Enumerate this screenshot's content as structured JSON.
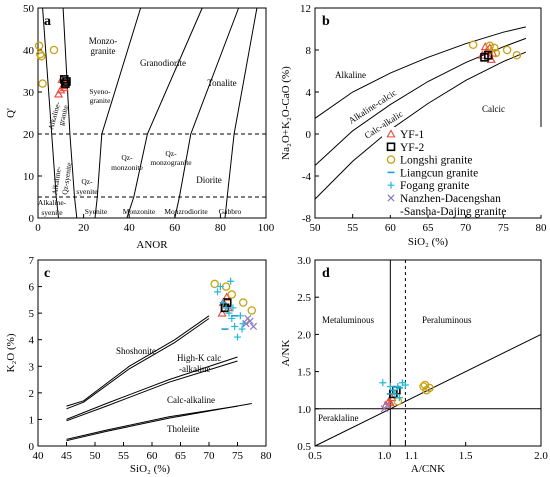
{
  "colors": {
    "axis": "#000000",
    "yf1": "#e8463c",
    "yf2": "#000000",
    "longshi": "#c9a214",
    "liangcun": "#1aa2d6",
    "fogang": "#22b8d6",
    "nanzhen": "#8a7bc4"
  },
  "legend": {
    "entries": [
      {
        "key": "yf1",
        "label": "YF-1",
        "icon": "triangle-icon"
      },
      {
        "key": "yf2",
        "label": "YF-2",
        "icon": "square-icon"
      },
      {
        "key": "longshi",
        "label": "Longshi granite",
        "icon": "circle-icon"
      },
      {
        "key": "liangcun",
        "label": "Liangcun granite",
        "icon": "dash-icon"
      },
      {
        "key": "fogang",
        "label": "Fogang granite",
        "icon": "plus-icon"
      },
      {
        "key": "nanzhen",
        "label": "Nanzhen-Dacengshan",
        "icon": "cross-icon"
      }
    ],
    "continuation": "-Sansha-Dajing granite"
  },
  "chart_data": [
    {
      "panel": "a",
      "type": "scatter",
      "xlabel": "ANOR",
      "ylabel": "Q'",
      "xlim": [
        0,
        100
      ],
      "ylim": [
        0,
        50
      ],
      "x_ticks": [
        "0",
        "20",
        "40",
        "60",
        "80",
        "100"
      ],
      "y_ticks": [
        "0",
        "10",
        "20",
        "30",
        "40",
        "50"
      ],
      "dashed_lines_y": [
        20,
        5
      ],
      "boundaries": [
        [
          [
            2,
            50
          ],
          [
            6,
            20
          ],
          [
            8,
            5
          ],
          [
            9,
            0
          ]
        ],
        [
          [
            11,
            50
          ],
          [
            14,
            20
          ],
          [
            16,
            5
          ],
          [
            17,
            0
          ]
        ],
        [
          [
            45,
            50
          ],
          [
            28,
            20
          ],
          [
            26,
            5
          ],
          [
            25,
            0
          ]
        ],
        [
          [
            72,
            50
          ],
          [
            48,
            20
          ],
          [
            42,
            5
          ],
          [
            39,
            0
          ]
        ],
        [
          [
            88,
            50
          ],
          [
            67,
            20
          ],
          [
            62,
            5
          ],
          [
            60,
            0
          ]
        ],
        [
          [
            96,
            50
          ],
          [
            86,
            20
          ],
          [
            83,
            5
          ],
          [
            82,
            0
          ]
        ]
      ],
      "fields": [
        "Monzo-",
        "granite",
        "Granodiorite",
        "Syeno-",
        "granite",
        "Alkaline-",
        "granite",
        "Tonalite",
        "Alkaline-",
        "Qz-syenite",
        "Qz-",
        "syenite",
        "Qz-",
        "monzonite",
        "Qz-",
        "monzogranite",
        "Diorite",
        "Alkaline-",
        "syenite",
        "Syenite",
        "Monzonite",
        "Monzrodiorite",
        "Gabbro"
      ],
      "series": [
        {
          "name": "YF-1",
          "marker": "triangle",
          "x": [
            9,
            10,
            11,
            12,
            10.5,
            11.5
          ],
          "y": [
            29.5,
            30.5,
            31.5,
            32,
            33,
            31
          ]
        },
        {
          "name": "YF-2",
          "marker": "square",
          "x": [
            11.5,
            12.5,
            12
          ],
          "y": [
            33,
            32.5,
            32
          ]
        },
        {
          "name": "Longshi granite",
          "marker": "circle",
          "x": [
            0.5,
            1,
            2,
            1.5,
            7
          ],
          "y": [
            41,
            39,
            32,
            38.5,
            40
          ]
        }
      ]
    },
    {
      "panel": "b",
      "type": "scatter",
      "xlabel": "SiO₂ (%)",
      "ylabel": "Na₂O+K₂O-CaO (%)",
      "xlim": [
        50,
        80
      ],
      "ylim": [
        -8,
        12
      ],
      "x_ticks": [
        "50",
        "55",
        "60",
        "65",
        "70",
        "75",
        "80"
      ],
      "y_ticks": [
        "-8",
        "-4",
        "0",
        "4",
        "8",
        "12"
      ],
      "curves": [
        [
          [
            50,
            1.5
          ],
          [
            55,
            4
          ],
          [
            60,
            5.8
          ],
          [
            65,
            7.3
          ],
          [
            70,
            8.6
          ],
          [
            75,
            9.7
          ],
          [
            78,
            10.2
          ]
        ],
        [
          [
            50,
            -3
          ],
          [
            55,
            0.3
          ],
          [
            60,
            2.8
          ],
          [
            65,
            5
          ],
          [
            70,
            6.8
          ],
          [
            75,
            8.3
          ],
          [
            78,
            9.1
          ]
        ],
        [
          [
            50,
            -6.2
          ],
          [
            55,
            -2.6
          ],
          [
            60,
            0.4
          ],
          [
            65,
            2.9
          ],
          [
            70,
            5.1
          ],
          [
            75,
            6.9
          ],
          [
            78,
            7.8
          ]
        ]
      ],
      "fields": [
        "Alkaline",
        "Alkaline-calcic",
        "Calc-alkalic",
        "Calcic"
      ],
      "series": [
        {
          "name": "YF-1",
          "marker": "triangle",
          "x": [
            72.2,
            72.8,
            73.2,
            73.6,
            72.6,
            73.4
          ],
          "y": [
            7.5,
            7.9,
            8.2,
            7.7,
            8.3,
            7.1
          ]
        },
        {
          "name": "YF-2",
          "marker": "square",
          "x": [
            72.5,
            73
          ],
          "y": [
            7.3,
            7.5
          ]
        },
        {
          "name": "Longshi granite",
          "marker": "circle",
          "x": [
            71,
            73.8,
            75.5,
            76.8,
            73.2,
            74
          ],
          "y": [
            8.5,
            8.2,
            8,
            7.5,
            8.4,
            7.7
          ]
        }
      ]
    },
    {
      "panel": "c",
      "type": "scatter",
      "xlabel": "SiO₂ (%)",
      "ylabel": "K₂O (%)",
      "xlim": [
        40,
        80
      ],
      "ylim": [
        0,
        7
      ],
      "x_ticks": [
        "40",
        "45",
        "50",
        "55",
        "60",
        "65",
        "70",
        "75",
        "80"
      ],
      "y_ticks": [
        "0",
        "1",
        "2",
        "3",
        "4",
        "5",
        "6",
        "7"
      ],
      "curves": [
        [
          [
            45,
            1.5
          ],
          [
            48,
            1.7
          ],
          [
            56,
            3.0
          ],
          [
            64,
            4.0
          ],
          [
            70,
            4.9
          ]
        ],
        [
          [
            45,
            1.4
          ],
          [
            48,
            1.65
          ],
          [
            56,
            2.9
          ],
          [
            64,
            3.9
          ],
          [
            70,
            4.8
          ]
        ],
        [
          [
            45,
            1.0
          ],
          [
            52,
            1.6
          ],
          [
            63,
            2.5
          ],
          [
            75,
            3.35
          ]
        ],
        [
          [
            45,
            0.95
          ],
          [
            52,
            1.5
          ],
          [
            63,
            2.4
          ],
          [
            75,
            3.2
          ]
        ],
        [
          [
            45,
            0.25
          ],
          [
            52,
            0.6
          ],
          [
            63,
            1.1
          ],
          [
            75,
            1.5
          ]
        ],
        [
          [
            45,
            0.2
          ],
          [
            52,
            0.55
          ],
          [
            63,
            1.05
          ],
          [
            77.5,
            1.6
          ]
        ]
      ],
      "fields": [
        "Shoshonite",
        "High-K calc",
        "-alkaline",
        "Calc-alkaline",
        "Tholeiite"
      ],
      "series": [
        {
          "name": "YF-1",
          "marker": "triangle",
          "x": [
            72.3,
            72.8,
            73.1,
            72.5,
            73.4
          ],
          "y": [
            5.0,
            5.3,
            5.6,
            5.4,
            5.2
          ]
        },
        {
          "name": "YF-2",
          "marker": "square",
          "x": [
            72.8,
            73.2
          ],
          "y": [
            5.2,
            5.4
          ]
        },
        {
          "name": "Longshi granite",
          "marker": "circle",
          "x": [
            71,
            74,
            76,
            77.5,
            73
          ],
          "y": [
            6.1,
            5.7,
            5.4,
            5.1,
            6.0
          ]
        },
        {
          "name": "Fogang granite",
          "marker": "plus",
          "x": [
            71.5,
            72,
            73,
            73.5,
            74,
            74.5,
            75,
            76,
            72.5,
            74.2,
            73.8,
            75.5,
            75.8
          ],
          "y": [
            5.8,
            6.0,
            5.2,
            5.0,
            4.8,
            4.5,
            4.1,
            4.6,
            5.4,
            5.2,
            6.2,
            4.9,
            4.4
          ]
        },
        {
          "name": "Liangcun granite",
          "marker": "dash",
          "x": [
            72.8,
            74.5
          ],
          "y": [
            4.4,
            4.9
          ]
        },
        {
          "name": "Nanzhen-Dacengshan-Sansha-Dajing granite",
          "marker": "cross",
          "x": [
            76.5,
            77.2,
            77.8,
            76.8
          ],
          "y": [
            4.6,
            4.7,
            4.5,
            4.8
          ]
        }
      ]
    },
    {
      "panel": "d",
      "type": "scatter",
      "xlabel": "A/CNK",
      "ylabel": "A/NK",
      "xlim": [
        0.5,
        2.0
      ],
      "ylim": [
        0.5,
        3.0
      ],
      "x_ticks": [
        "0.5",
        "1.0",
        "1.1",
        "1.5",
        "2.0"
      ],
      "y_ticks": [
        "0.5",
        "1.0",
        "1.5",
        "2.0",
        "2.5",
        "3.0"
      ],
      "lines": {
        "x_solid": 1.0,
        "x_dashed": 1.1,
        "y_solid": 1.0,
        "diagonal": [
          [
            0.5,
            0.5
          ],
          [
            2.0,
            2.0
          ]
        ]
      },
      "fields": [
        "Metaluminous",
        "Peraluminous",
        "Peraklaline"
      ],
      "series": [
        {
          "name": "YF-1",
          "marker": "triangle",
          "x": [
            0.97,
            0.99,
            1.01,
            1.0
          ],
          "y": [
            1.05,
            1.1,
            1.15,
            1.08
          ]
        },
        {
          "name": "YF-2",
          "marker": "square",
          "x": [
            1.02,
            1.04
          ],
          "y": [
            1.2,
            1.25
          ]
        },
        {
          "name": "Longshi granite",
          "marker": "circle",
          "x": [
            1.05,
            1.22,
            1.24,
            1.26,
            1.23
          ],
          "y": [
            1.1,
            1.3,
            1.25,
            1.28,
            1.32
          ]
        },
        {
          "name": "Fogang granite",
          "marker": "plus",
          "x": [
            0.95,
            1.0,
            1.02,
            1.05,
            1.08,
            1.1,
            1.03,
            1.06
          ],
          "y": [
            1.35,
            1.3,
            1.25,
            1.3,
            1.35,
            1.32,
            1.2,
            1.15
          ]
        },
        {
          "name": "Liangcun granite",
          "marker": "dash",
          "x": [
            1.0,
            1.06
          ],
          "y": [
            1.2,
            1.28
          ]
        },
        {
          "name": "Nanzhen-Dacengshan-Sansha-Dajing granite",
          "marker": "cross",
          "x": [
            0.96,
            0.98
          ],
          "y": [
            1.0,
            1.05
          ]
        }
      ]
    }
  ]
}
